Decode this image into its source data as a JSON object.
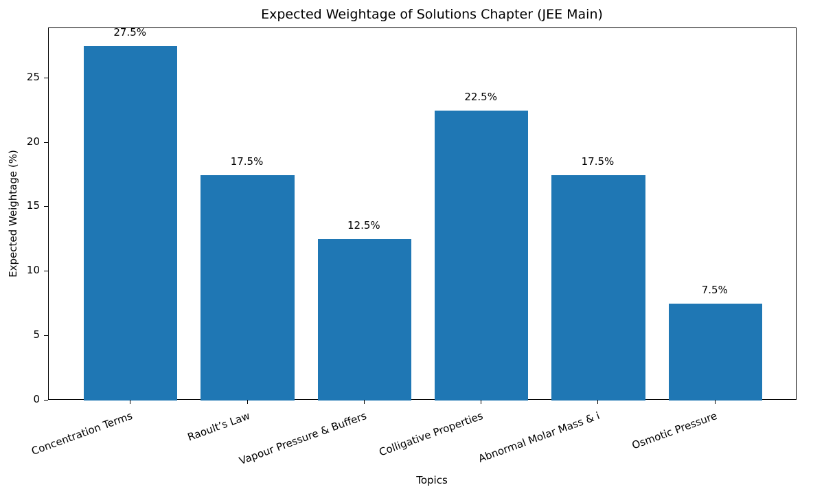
{
  "chart_data": {
    "type": "bar",
    "title": "Expected Weightage of Solutions Chapter (JEE Main)",
    "xlabel": "Topics",
    "ylabel": "Expected Weightage (%)",
    "categories": [
      "Concentration Terms",
      "Raoult’s Law",
      "Vapour Pressure & Buffers",
      "Colligative Properties",
      "Abnormal Molar Mass & i",
      "Osmotic Pressure"
    ],
    "values": [
      27.5,
      17.5,
      12.5,
      22.5,
      17.5,
      7.5
    ],
    "bar_labels": [
      "27.5%",
      "17.5%",
      "12.5%",
      "22.5%",
      "17.5%",
      "7.5%"
    ],
    "yticks": [
      0,
      5,
      10,
      15,
      20,
      25
    ],
    "ylim": [
      0,
      28.875
    ],
    "grid": false,
    "legend": null,
    "bar_color": "#1f77b4"
  }
}
